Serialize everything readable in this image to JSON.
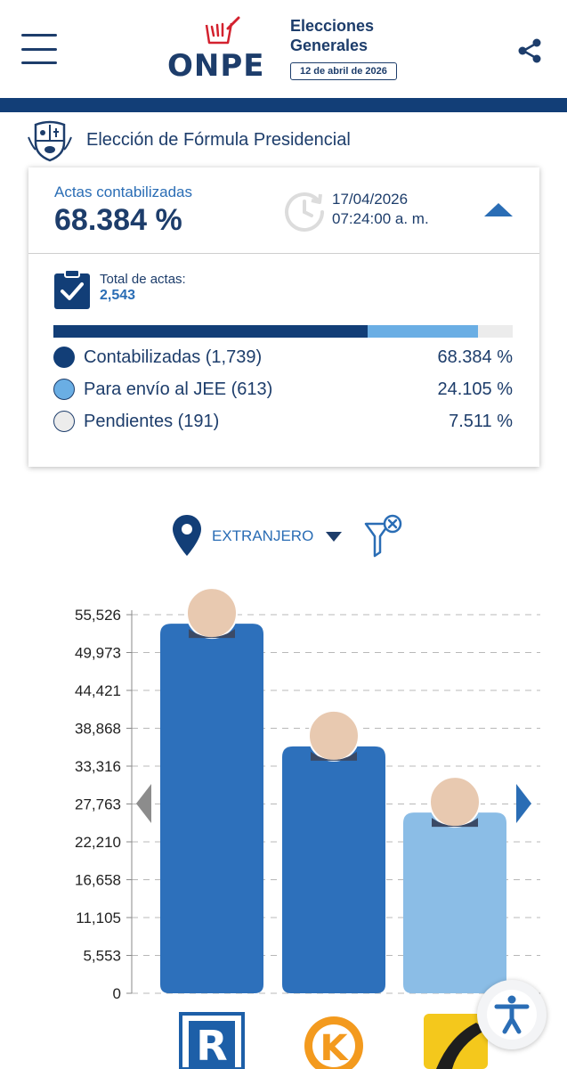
{
  "header": {
    "logo_text": "ONPE",
    "title_line1": "Elecciones",
    "title_line2": "Generales",
    "date": "12 de abril de 2026"
  },
  "election": {
    "title": "Elección de Fórmula Presidencial"
  },
  "summary": {
    "actas_label": "Actas contabilizadas",
    "actas_value": "68.384 %",
    "update_date": "17/04/2026",
    "update_time": "07:24:00 a. m.",
    "total_label": "Total de actas:",
    "total_value": "2,543",
    "progress": {
      "contabilizadas": 68.384,
      "jee": 24.105,
      "pendientes": 7.511
    },
    "legend": [
      {
        "label": "Contabilizadas (1,739)",
        "pct": "68.384 %",
        "color": "#123e77"
      },
      {
        "label": "Para envío al JEE (613)",
        "pct": "24.105 %",
        "color": "#6aaee4"
      },
      {
        "label": "Pendientes (191)",
        "pct": "7.511 %",
        "color": "#ececec"
      }
    ]
  },
  "filter": {
    "region": "EXTRANJERO"
  },
  "colors": {
    "navy": "#123e77",
    "blue": "#2a6db5",
    "light": "#8bbde6",
    "bar": "#2d70bb"
  },
  "chart_data": {
    "type": "bar",
    "yticks": [
      "55,526",
      "49,973",
      "44,421",
      "38,868",
      "33,316",
      "27,763",
      "22,210",
      "16,658",
      "11,105",
      "5,553",
      "0"
    ],
    "ylim": [
      0,
      55526
    ],
    "series": [
      {
        "values": [
          54200,
          36200,
          26500
        ]
      }
    ],
    "colors": [
      "#2d70bb",
      "#2d70bb",
      "#8bbde6"
    ],
    "party_logos": [
      "letter-r-logo",
      "letter-k-logo",
      "road-logo"
    ]
  }
}
